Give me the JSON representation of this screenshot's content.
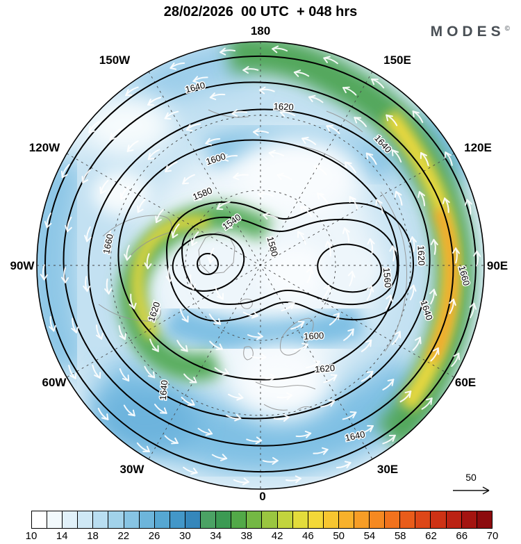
{
  "header": {
    "title": "28/02/2026  00 UTC  + 048 hrs",
    "logo": {
      "text": "MODES",
      "sup": "©"
    }
  },
  "map": {
    "lon_labels": [
      "180",
      "150W",
      "150E",
      "120W",
      "120E",
      "90W",
      "90E",
      "60W",
      "60E",
      "30W",
      "30E",
      "0"
    ],
    "contour_levels": [
      "1540",
      "1560",
      "1580",
      "1600",
      "1620",
      "1640",
      "1660"
    ],
    "scale_label": "50"
  },
  "colorbar": {
    "ticks": [
      "10",
      "14",
      "18",
      "22",
      "26",
      "30",
      "34",
      "38",
      "42",
      "46",
      "50",
      "54",
      "58",
      "62",
      "66",
      "70"
    ],
    "colors": [
      "#ffffff",
      "#f2f9fc",
      "#e1f1f9",
      "#cfe8f5",
      "#b9def1",
      "#a1d2ea",
      "#87c4e3",
      "#6db5db",
      "#56a7d2",
      "#4397c8",
      "#3587bb",
      "#4ba264",
      "#3c9a53",
      "#52a948",
      "#74b844",
      "#9ac640",
      "#c2d43d",
      "#e3dc3b",
      "#f3d838",
      "#f7c630",
      "#f8b12b",
      "#f79d26",
      "#f58921",
      "#f1721d",
      "#e95c1a",
      "#dd4718",
      "#ce3215",
      "#bb2213",
      "#a41410",
      "#8c0b0e"
    ]
  },
  "chart_data": {
    "type": "heatmap",
    "title": "28/02/2026 00 UTC + 048 hrs",
    "projection": "north polar stereographic",
    "shading": {
      "render": "filled color shading with colorbar",
      "value_min": 10,
      "value_max": 70,
      "fill_interval": 2,
      "tick_interval": 4,
      "tick_values": [
        10,
        14,
        18,
        22,
        26,
        30,
        34,
        38,
        42,
        46,
        50,
        54,
        58,
        62,
        66,
        70
      ]
    },
    "contours": {
      "render": "solid black contour lines",
      "interval": 20,
      "labeled_levels": [
        1540,
        1560,
        1580,
        1600,
        1620,
        1640,
        1660
      ]
    },
    "vectors": {
      "render": "white wind arrows",
      "reference_arrow_value": 50
    },
    "longitude_labels": [
      "180",
      "150W",
      "120W",
      "90W",
      "60W",
      "30W",
      "0",
      "30E",
      "60E",
      "90E",
      "120E",
      "150E"
    ],
    "legend_position": "bottom colorbar"
  }
}
